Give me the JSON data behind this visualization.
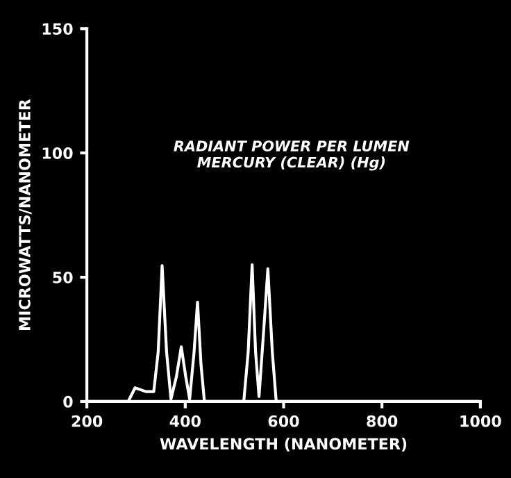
{
  "chart_data": {
    "type": "line",
    "title": "RADIANT POWER PER LUMEN\nMERCURY (CLEAR) (Hg)",
    "xlabel": "WAVELENGTH (NANOMETER)",
    "ylabel": "MICROWATTS/NANOMETER",
    "series": [
      {
        "color": "#ffffff",
        "x": [
          200,
          284,
          298,
          320,
          336,
          345,
          353,
          362,
          371,
          382,
          392,
          401,
          409,
          418,
          425,
          432,
          439,
          480,
          519,
          528,
          536,
          543,
          550,
          560,
          568,
          577,
          585,
          700,
          850,
          994
        ],
        "values": [
          0,
          0,
          5.5,
          4,
          4,
          20,
          54.7,
          20,
          1,
          10,
          22,
          10,
          1,
          20,
          40,
          15,
          0,
          0,
          0,
          20,
          55,
          20,
          2,
          30,
          53.4,
          20,
          0,
          0,
          0,
          0
        ]
      }
    ],
    "xlim": [
      200,
      1000
    ],
    "ylim": [
      0,
      150
    ],
    "xticks": [
      200,
      400,
      600,
      800,
      1000
    ],
    "yticks": [
      0,
      50,
      100,
      150
    ],
    "grid": false,
    "legend": false
  }
}
